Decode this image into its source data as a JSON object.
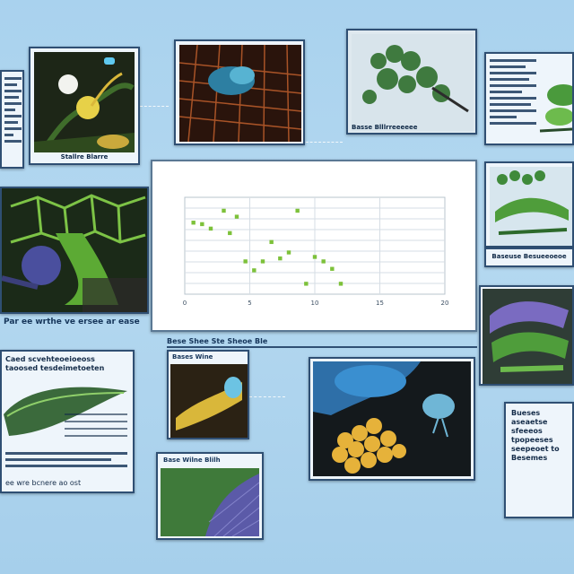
{
  "chart_data": {
    "type": "scatter",
    "title": "",
    "subtitle": "",
    "xlabel": "",
    "ylabel": "",
    "xlim": [
      0,
      30
    ],
    "x_ticks": [
      "0",
      "5",
      "10",
      "15",
      "20"
    ],
    "grid": true,
    "points": [
      {
        "x": 1.0,
        "y": 0.78
      },
      {
        "x": 2.0,
        "y": 0.77
      },
      {
        "x": 3.0,
        "y": 0.74
      },
      {
        "x": 4.5,
        "y": 0.86
      },
      {
        "x": 5.2,
        "y": 0.71
      },
      {
        "x": 6.0,
        "y": 0.82
      },
      {
        "x": 7.0,
        "y": 0.52
      },
      {
        "x": 8.0,
        "y": 0.46
      },
      {
        "x": 9.0,
        "y": 0.52
      },
      {
        "x": 10.0,
        "y": 0.65
      },
      {
        "x": 11.0,
        "y": 0.54
      },
      {
        "x": 12.0,
        "y": 0.58
      },
      {
        "x": 13.0,
        "y": 0.86
      },
      {
        "x": 14.0,
        "y": 0.37
      },
      {
        "x": 15.0,
        "y": 0.55
      },
      {
        "x": 16.0,
        "y": 0.52
      },
      {
        "x": 17.0,
        "y": 0.47
      },
      {
        "x": 18.0,
        "y": 0.37
      }
    ]
  },
  "panels": {
    "left_notes_caption": "Par ee wrthe ve ersee ar ease",
    "leaf_text": "Caed scvehteoeioeoss taoosed tesdeimetoeten",
    "leaf_caption": "ee wre bcnere ao ost",
    "small_yellow_caption": "Bases Wine",
    "mosaic_caption": "Base Wilne Blilh",
    "right_text": "Bueses aseaetse sfeeeos tpopeeses seepeoet to Besemes",
    "strip_caption": "Bese Shee Ste Sheoe Ble"
  },
  "colors": {
    "background": "#a9d2ee",
    "panel_border": "#2f4f73",
    "point": "#7dc13a",
    "grid": "#d6dde4"
  }
}
